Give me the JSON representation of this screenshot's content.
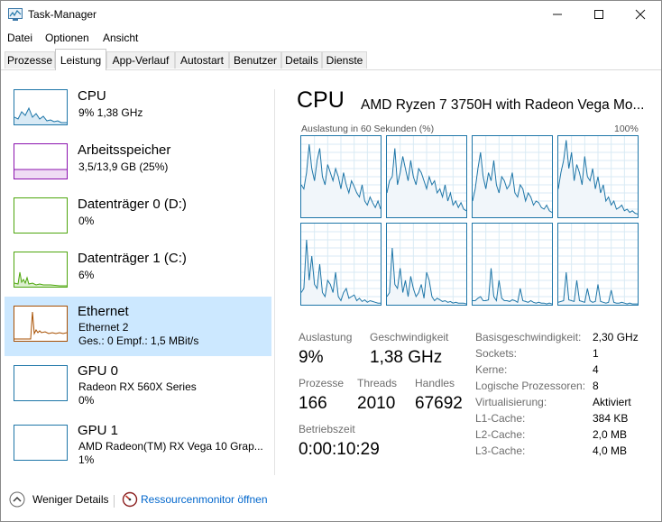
{
  "window": {
    "title": "Task-Manager",
    "controls": {
      "minimize": "minimize",
      "maximize": "maximize",
      "close": "close"
    }
  },
  "menu": [
    "Datei",
    "Optionen",
    "Ansicht"
  ],
  "tabs": [
    {
      "label": "Prozesse",
      "active": false
    },
    {
      "label": "Leistung",
      "active": true
    },
    {
      "label": "App-Verlauf",
      "active": false
    },
    {
      "label": "Autostart",
      "active": false
    },
    {
      "label": "Benutzer",
      "active": false
    },
    {
      "label": "Details",
      "active": false
    },
    {
      "label": "Dienste",
      "active": false
    }
  ],
  "sidebar": {
    "items": [
      {
        "title": "CPU",
        "line1": "9%  1,38 GHz",
        "line2": "",
        "color": "#1e76a8",
        "selected": false
      },
      {
        "title": "Arbeitsspeicher",
        "line1": "3,5/13,9 GB (25%)",
        "line2": "",
        "color": "#8b12ae",
        "selected": false
      },
      {
        "title": "Datenträger 0 (D:)",
        "line1": "0%",
        "line2": "",
        "color": "#4da60c",
        "selected": false
      },
      {
        "title": "Datenträger 1 (C:)",
        "line1": "6%",
        "line2": "",
        "color": "#4da60c",
        "selected": false
      },
      {
        "title": "Ethernet",
        "line1": "Ethernet 2",
        "line2": "Ges.: 0 Empf.: 1,5 MBit/s",
        "color": "#a74f01",
        "selected": true
      },
      {
        "title": "GPU 0",
        "line1": "Radeon RX 560X Series",
        "line2": "0%",
        "color": "#1e76a8",
        "selected": false
      },
      {
        "title": "GPU 1",
        "line1": "AMD Radeon(TM) RX Vega 10 Grap...",
        "line2": "1%",
        "color": "#1e76a8",
        "selected": false
      }
    ]
  },
  "main": {
    "title": "CPU",
    "processor": "AMD Ryzen 7 3750H with Radeon Vega Mo...",
    "graph_caption": "Auslastung in 60 Sekunden (%)",
    "graph_max": "100%",
    "stats": {
      "auslastung_label": "Auslastung",
      "auslastung": "9%",
      "geschwindigkeit_label": "Geschwindigkeit",
      "geschwindigkeit": "1,38 GHz",
      "prozesse_label": "Prozesse",
      "prozesse": "166",
      "threads_label": "Threads",
      "threads": "2010",
      "handles_label": "Handles",
      "handles": "67692",
      "betriebszeit_label": "Betriebszeit",
      "betriebszeit": "0:00:10:29"
    },
    "details": [
      {
        "label": "Basisgeschwindigkeit:",
        "value": "2,30 GHz"
      },
      {
        "label": "Sockets:",
        "value": "1"
      },
      {
        "label": "Kerne:",
        "value": "4"
      },
      {
        "label": "Logische Prozessoren:",
        "value": "8"
      },
      {
        "label": "Virtualisierung:",
        "value": "Aktiviert"
      },
      {
        "label": "L1-Cache:",
        "value": "384 KB"
      },
      {
        "label": "L2-Cache:",
        "value": "2,0 MB"
      },
      {
        "label": "L3-Cache:",
        "value": "4,0 MB"
      }
    ]
  },
  "footer": {
    "fewer_details": "Weniger Details",
    "resource_monitor": "Ressourcenmonitor öffnen"
  },
  "colors": {
    "cpu": "#1e76a8",
    "memory": "#8b12ae",
    "disk": "#4da60c",
    "ethernet": "#a74f01",
    "selected_bg": "#cce8ff",
    "link": "#0066cc"
  },
  "core_usage_history": [
    [
      40,
      35,
      55,
      90,
      60,
      45,
      70,
      85,
      50,
      40,
      65,
      55,
      45,
      60,
      50,
      35,
      55,
      40,
      30,
      45,
      38,
      30,
      25,
      40,
      20,
      15,
      25,
      18,
      12,
      20,
      10
    ],
    [
      30,
      45,
      50,
      85,
      40,
      55,
      75,
      60,
      45,
      70,
      50,
      40,
      60,
      55,
      45,
      35,
      50,
      40,
      45,
      30,
      35,
      25,
      40,
      20,
      30,
      15,
      20,
      12,
      18,
      10,
      8
    ],
    [
      20,
      35,
      60,
      80,
      50,
      35,
      55,
      45,
      70,
      40,
      30,
      50,
      45,
      35,
      40,
      55,
      30,
      25,
      40,
      35,
      20,
      30,
      25,
      15,
      20,
      18,
      12,
      10,
      15,
      8,
      6
    ],
    [
      35,
      55,
      70,
      95,
      60,
      80,
      45,
      65,
      55,
      40,
      75,
      50,
      45,
      60,
      35,
      50,
      30,
      40,
      20,
      25,
      15,
      20,
      10,
      12,
      15,
      8,
      10,
      6,
      8,
      5,
      4
    ],
    [
      15,
      20,
      80,
      30,
      60,
      25,
      20,
      50,
      15,
      10,
      30,
      25,
      15,
      40,
      10,
      5,
      15,
      20,
      8,
      10,
      12,
      5,
      8,
      4,
      6,
      3,
      5,
      4,
      3,
      2,
      2
    ],
    [
      10,
      15,
      70,
      25,
      20,
      45,
      15,
      30,
      10,
      35,
      20,
      10,
      15,
      25,
      8,
      40,
      30,
      10,
      5,
      8,
      6,
      4,
      5,
      3,
      4,
      2,
      3,
      2,
      2,
      2,
      1
    ],
    [
      5,
      5,
      8,
      10,
      5,
      5,
      6,
      45,
      10,
      5,
      30,
      8,
      5,
      5,
      4,
      6,
      5,
      3,
      20,
      5,
      4,
      3,
      5,
      3,
      2,
      3,
      2,
      2,
      1,
      2,
      1
    ],
    [
      3,
      4,
      5,
      40,
      6,
      5,
      4,
      30,
      5,
      4,
      3,
      20,
      5,
      3,
      4,
      25,
      4,
      3,
      2,
      3,
      18,
      3,
      2,
      2,
      3,
      2,
      1,
      2,
      1,
      1,
      1
    ]
  ]
}
